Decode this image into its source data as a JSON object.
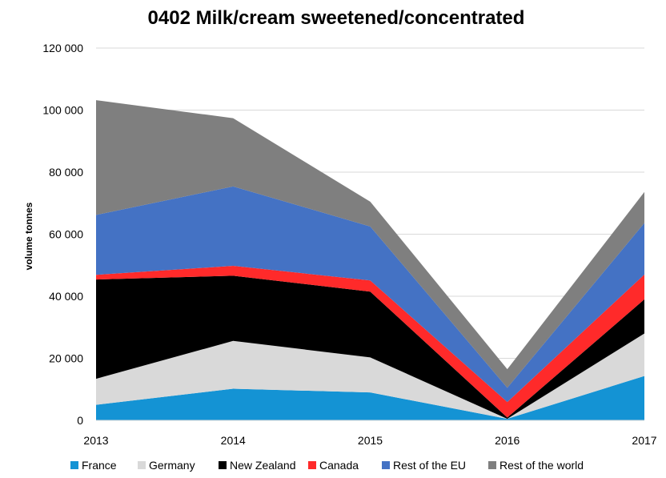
{
  "chart_data": {
    "type": "area",
    "stacked": true,
    "title": "0402 Milk/cream sweetened/concentrated",
    "ylabel": "volume tonnes",
    "xlabel": "",
    "x": [
      "2013",
      "2014",
      "2015",
      "2016",
      "2017"
    ],
    "ylim": [
      0,
      120000
    ],
    "yticks": [
      0,
      20000,
      40000,
      60000,
      80000,
      100000,
      120000
    ],
    "ytick_labels": [
      "0",
      "20 000",
      "40 000",
      "60 000",
      "80 000",
      "100 000",
      "120 000"
    ],
    "grid": true,
    "legend_position": "bottom",
    "series": [
      {
        "name": "France",
        "color": "#1493d4",
        "values": [
          5000,
          10200,
          9000,
          500,
          14300
        ]
      },
      {
        "name": "Germany",
        "color": "#d9d9d9",
        "values": [
          8400,
          15400,
          11300,
          0,
          13700
        ]
      },
      {
        "name": "New Zealand",
        "color": "#000000",
        "values": [
          32000,
          21000,
          21200,
          400,
          11000
        ]
      },
      {
        "name": "Canada",
        "color": "#ff2a2a",
        "values": [
          1500,
          3200,
          3600,
          5000,
          8000
        ]
      },
      {
        "name": "Rest of the EU",
        "color": "#4472c4",
        "values": [
          19300,
          25600,
          17400,
          4600,
          16600
        ]
      },
      {
        "name": "Rest of the world",
        "color": "#7f7f7f",
        "values": [
          37000,
          22000,
          8000,
          6000,
          10000
        ]
      }
    ]
  }
}
